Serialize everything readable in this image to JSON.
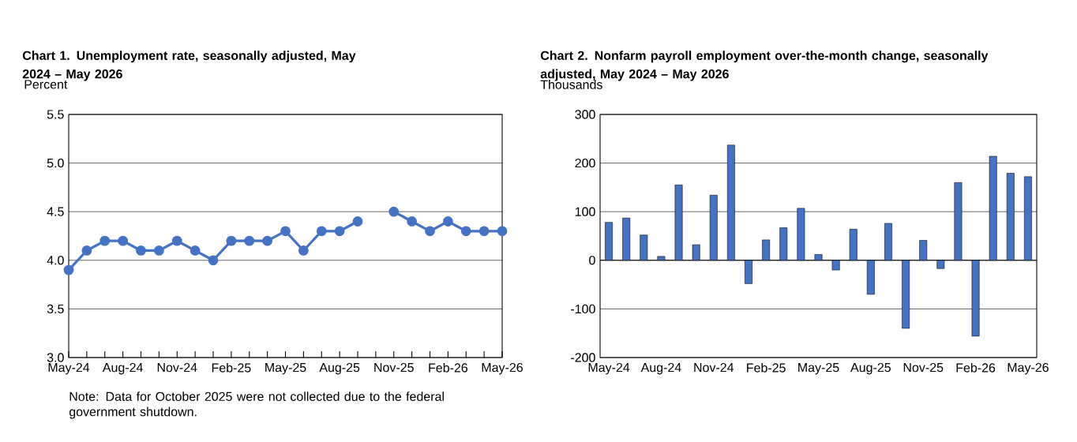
{
  "chart_data": [
    {
      "type": "line",
      "title": "Chart 1. Unemployment rate, seasonally adjusted, May 2024 – May 2026",
      "ylabel": "Percent",
      "categories": [
        "May-24",
        null,
        null,
        "Aug-24",
        null,
        null,
        "Nov-24",
        null,
        null,
        "Feb-25",
        null,
        null,
        "May-25",
        null,
        null,
        "Aug-25",
        null,
        null,
        "Nov-25",
        null,
        null,
        "Feb-26",
        null,
        null,
        "May-26"
      ],
      "series": [
        {
          "color": "#4472c4",
          "values": [
            3.9,
            4.1,
            4.2,
            4.2,
            4.1,
            4.1,
            4.2,
            4.1,
            4.0,
            4.2,
            4.2,
            4.2,
            4.3,
            4.1,
            4.3,
            4.3,
            4.4,
            null,
            4.5,
            4.4,
            4.3,
            4.4,
            4.3,
            4.3,
            4.3
          ]
        }
      ],
      "ylim": [
        3.0,
        5.5
      ],
      "yticks": [
        {
          "value": 3.0,
          "label": "3.0"
        },
        {
          "value": 3.5,
          "label": "3.5"
        },
        {
          "value": 4.0,
          "label": "4.0"
        },
        {
          "value": 4.5,
          "label": "4.5"
        },
        {
          "value": 5.0,
          "label": "5.0"
        },
        {
          "value": 5.5,
          "label": "5.5"
        }
      ],
      "grid": "y",
      "marker": "circle",
      "line_style": "solid",
      "annotations": [
        "Note: Data for October 2025 were not collected due to the federal government shutdown."
      ]
    },
    {
      "type": "bar",
      "title": "Chart 2. Nonfarm payroll employment over-the-month change, seasonally adjusted, May 2024 – May 2026",
      "ylabel": "Thousands",
      "categories": [
        "May-24",
        null,
        null,
        "Aug-24",
        null,
        null,
        "Nov-24",
        null,
        null,
        "Feb-25",
        null,
        null,
        "May-25",
        null,
        null,
        "Aug-25",
        null,
        null,
        "Nov-25",
        null,
        null,
        "Feb-26",
        null,
        null,
        "May-26"
      ],
      "series": [
        {
          "color": "#4472c4",
          "values": [
            78,
            87,
            52,
            8,
            155,
            32,
            134,
            237,
            -48,
            42,
            67,
            107,
            12,
            -20,
            64,
            -70,
            76,
            -140,
            41,
            -17,
            160,
            -156,
            214,
            179,
            172
          ]
        }
      ],
      "ylim": [
        -200,
        300
      ],
      "yticks": [
        -200,
        -100,
        0,
        100,
        200,
        300
      ],
      "grid": "y"
    }
  ]
}
